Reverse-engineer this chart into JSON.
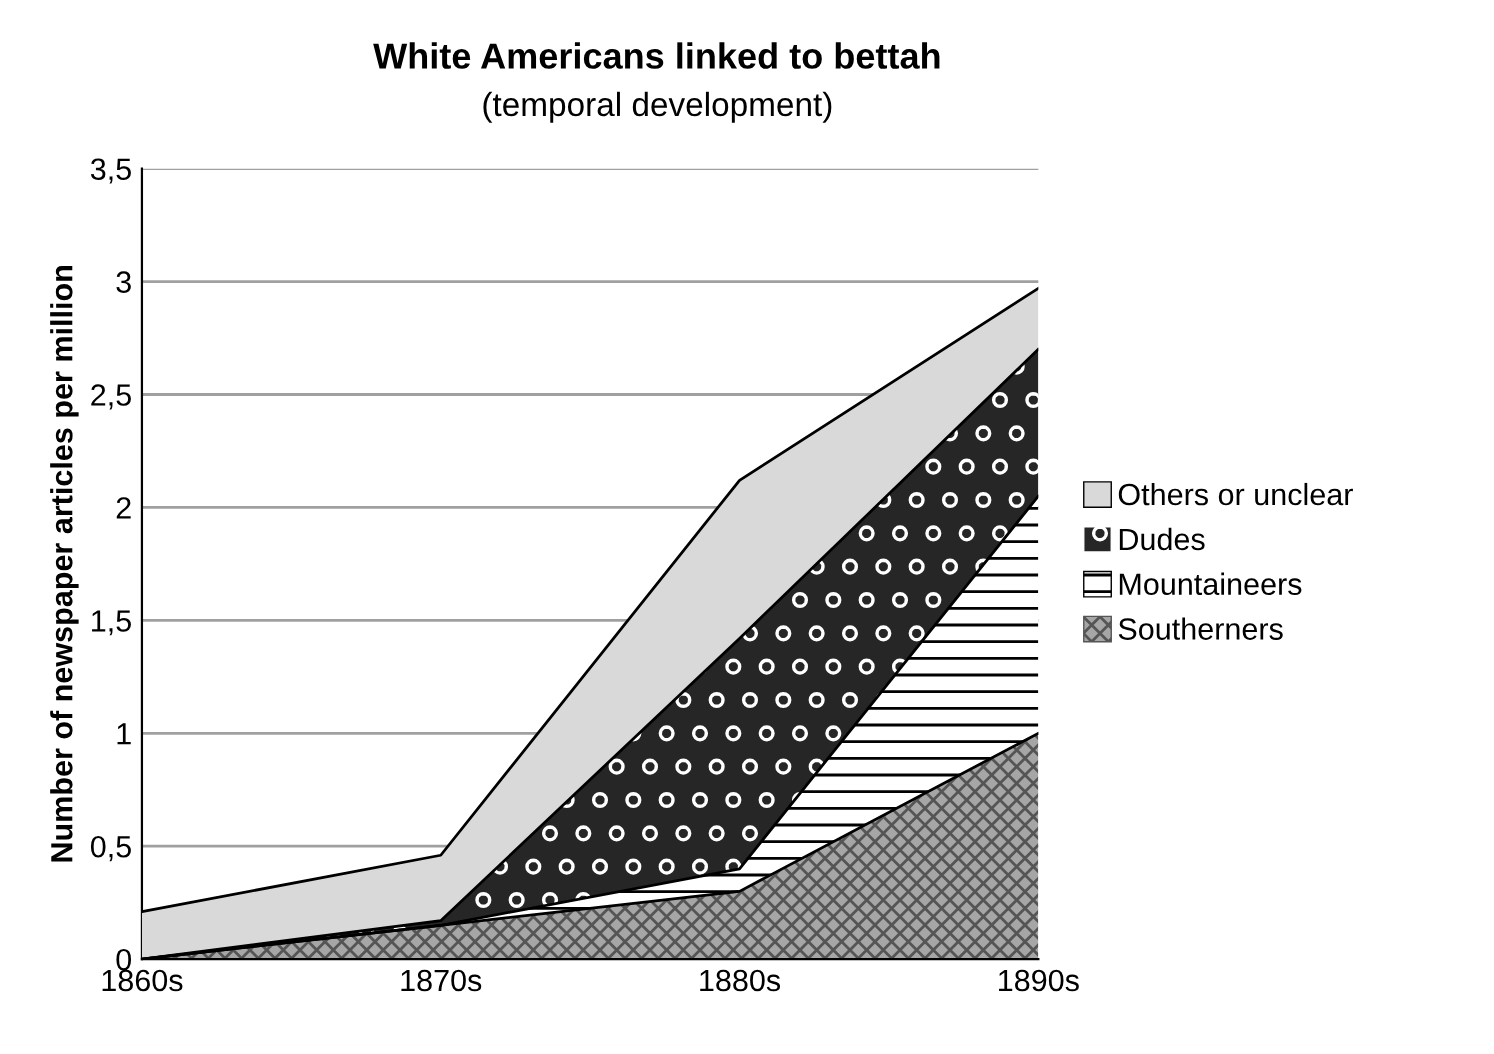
{
  "chart_data": {
    "type": "area",
    "stacked": true,
    "title": "White Americans linked to bettah",
    "subtitle": "(temporal development)",
    "ylabel": "Number of newspaper articles per million",
    "categories": [
      "1860s",
      "1870s",
      "1880s",
      "1890s"
    ],
    "series": [
      {
        "name": "Southerners",
        "color": "#a6a6a6",
        "values": [
          0,
          0.15,
          0.3,
          1.0
        ]
      },
      {
        "name": "Mountaineers",
        "color": "#ffffff",
        "values": [
          0,
          0,
          0.1,
          1.05
        ]
      },
      {
        "name": "Dudes",
        "color": "#262626",
        "values": [
          0,
          0.02,
          1.02,
          0.65
        ]
      },
      {
        "name": "Others or unclear",
        "color": "#d9d9d9",
        "values": [
          0.21,
          0.29,
          0.7,
          0.27
        ]
      }
    ],
    "ylim": [
      0,
      3.5
    ],
    "yticks": [
      0,
      {
        "value": 0.5,
        "label": "0,5"
      },
      1,
      {
        "value": 1.5,
        "label": "1,5"
      },
      2,
      {
        "value": 2.5,
        "label": "2,5"
      },
      3,
      {
        "value": 3.5,
        "label": "3,5"
      }
    ],
    "grid": "y",
    "legend": "right"
  }
}
